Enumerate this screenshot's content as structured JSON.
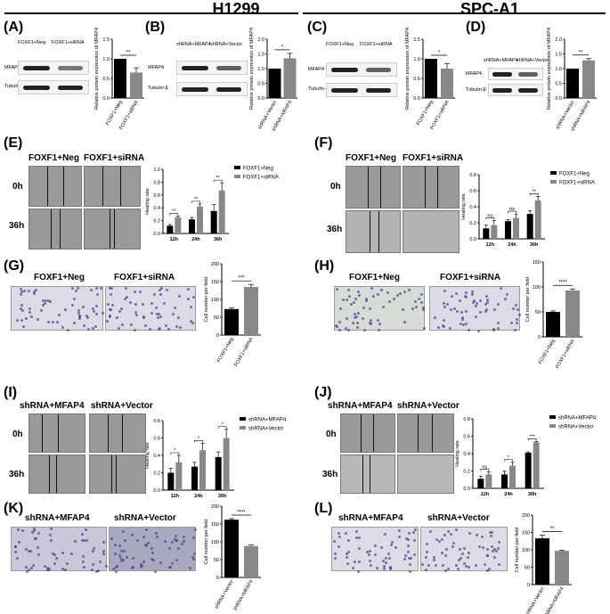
{
  "headers": {
    "left": "H1299",
    "right": "SPC-A1"
  },
  "panels": {
    "A": {
      "label": "(A)",
      "cond": [
        "FOXF1+Neg",
        "FOXF1+siRNA"
      ],
      "rows": [
        "MFAP4",
        "Tubulin-β"
      ]
    },
    "B": {
      "label": "(B)",
      "cond": [
        "shRNA+MFAP4",
        "shRNA+Vector"
      ],
      "rows": [
        "MFAP4",
        "Tubulin-β"
      ]
    },
    "C": {
      "label": "(C)",
      "cond": [
        "FOXF1+Neg",
        "FOXF1+siRNA"
      ],
      "rows": [
        "MFAP4",
        "Tubulin-β"
      ]
    },
    "D": {
      "label": "(D)",
      "cond": [
        "shRNA+MFAP4",
        "shRNA+Vector"
      ],
      "rows": [
        "MFAP4",
        "Tubulin-β"
      ]
    },
    "E": {
      "label": "(E)",
      "cond": [
        "FOXF1+Neg",
        "FOXF1+siRNA"
      ],
      "times": [
        "0h",
        "36h"
      ]
    },
    "F": {
      "label": "(F)",
      "cond": [
        "FOXF1+Neg",
        "FOXF1+siRNA"
      ],
      "times": [
        "0h",
        "36h"
      ]
    },
    "G": {
      "label": "(G)",
      "cond": [
        "FOXF1+Neg",
        "FOXF1+siRNA"
      ]
    },
    "H": {
      "label": "(H)",
      "cond": [
        "FOXF1+Neg",
        "FOXF1+siRNA"
      ]
    },
    "I": {
      "label": "(I)",
      "cond": [
        "shRNA+MFAP4",
        "shRNA+Vector"
      ],
      "times": [
        "0h",
        "36h"
      ]
    },
    "J": {
      "label": "(J)",
      "cond": [
        "shRNA+MFAP4",
        "shRNA+Vector"
      ],
      "times": [
        "0h",
        "36h"
      ]
    },
    "K": {
      "label": "(K)",
      "cond": [
        "shRNA+MFAP4",
        "shRNA+Vector"
      ]
    },
    "L": {
      "label": "(L)",
      "cond": [
        "shRNA+MFAP4",
        "shRNA+Vector"
      ]
    }
  },
  "chart_data": [
    {
      "id": "A",
      "type": "bar",
      "categories": [
        "FOXF1+Neg",
        "FOXF1+siRNA"
      ],
      "values": [
        1.0,
        0.65
      ],
      "errors": [
        0,
        0.12
      ],
      "ylabel": "Relative protein expression of MFAP4",
      "ylim": [
        0,
        1.5
      ],
      "yticks": [
        "0.0",
        "0.5",
        "1.0",
        "1.5"
      ],
      "sig": "**",
      "colors": [
        "#000000",
        "#888888"
      ]
    },
    {
      "id": "B",
      "type": "bar",
      "categories": [
        "shRNA+Vector",
        "shRNA+MFAP4"
      ],
      "values": [
        1.0,
        1.35
      ],
      "errors": [
        0,
        0.17
      ],
      "ylabel": "Relative protein expression of MFAP4",
      "ylim": [
        0,
        2.0
      ],
      "yticks": [
        "0.0",
        "0.5",
        "1.0",
        "1.5",
        "2.0"
      ],
      "sig": "*",
      "colors": [
        "#000000",
        "#888888"
      ]
    },
    {
      "id": "C",
      "type": "bar",
      "categories": [
        "FOXF1+Neg",
        "FOXF1+siRNA"
      ],
      "values": [
        1.0,
        0.75
      ],
      "errors": [
        0,
        0.13
      ],
      "ylabel": "Relative protein expression of MFAP4",
      "ylim": [
        0,
        1.5
      ],
      "yticks": [
        "0.0",
        "0.5",
        "1.0",
        "1.5"
      ],
      "sig": "*",
      "colors": [
        "#000000",
        "#888888"
      ]
    },
    {
      "id": "D",
      "type": "bar",
      "categories": [
        "shRNA+Vector",
        "shRNA+MFAP4"
      ],
      "values": [
        1.0,
        1.28
      ],
      "errors": [
        0,
        0.06
      ],
      "ylabel": "Relative protein expression of MFAP4",
      "ylim": [
        0,
        2.0
      ],
      "yticks": [
        "0.0",
        "0.5",
        "1.0",
        "1.5",
        "2.0"
      ],
      "sig": "**",
      "colors": [
        "#000000",
        "#888888"
      ]
    },
    {
      "id": "E",
      "type": "bar",
      "categories": [
        "12h",
        "24h",
        "36h"
      ],
      "series": [
        {
          "name": "FOXF1+Neg",
          "values": [
            0.12,
            0.22,
            0.35
          ],
          "errors": [
            0.02,
            0.03,
            0.1
          ]
        },
        {
          "name": "FOXF1+siRNA",
          "values": [
            0.25,
            0.42,
            0.67
          ],
          "errors": [
            0.02,
            0.04,
            0.12
          ]
        }
      ],
      "ylabel": "Healing rate",
      "ylim": [
        0,
        1.0
      ],
      "yticks": [
        "0.0",
        "0.2",
        "0.4",
        "0.6",
        "0.8",
        "1.0"
      ],
      "sig": [
        "**",
        "**",
        "**"
      ],
      "colors": [
        "#000000",
        "#888888"
      ],
      "legend": "top-right"
    },
    {
      "id": "F",
      "type": "bar",
      "categories": [
        "12h",
        "24h",
        "36h"
      ],
      "series": [
        {
          "name": "FOXF1+Neg",
          "values": [
            0.13,
            0.22,
            0.31
          ],
          "errors": [
            0.04,
            0.02,
            0.04
          ]
        },
        {
          "name": "FOXF1+siRNA",
          "values": [
            0.17,
            0.26,
            0.48
          ],
          "errors": [
            0.06,
            0.05,
            0.05
          ]
        }
      ],
      "ylabel": "Healing rate",
      "ylim": [
        0,
        0.8
      ],
      "yticks": [
        "0.0",
        "0.2",
        "0.4",
        "0.6",
        "0.8"
      ],
      "sig": [
        "ns",
        "ns",
        "**"
      ],
      "colors": [
        "#000000",
        "#888888"
      ],
      "legend": "top-right"
    },
    {
      "id": "G",
      "type": "bar",
      "categories": [
        "FOXF1+Neg",
        "FOXF1+siRNA"
      ],
      "values": [
        73,
        135
      ],
      "errors": [
        3,
        7
      ],
      "ylabel": "Cell number per field",
      "ylim": [
        0,
        200
      ],
      "yticks": [
        "0",
        "50",
        "100",
        "150",
        "200"
      ],
      "sig": "***",
      "colors": [
        "#000000",
        "#888888"
      ]
    },
    {
      "id": "H",
      "type": "bar",
      "categories": [
        "FOXF1+Neg",
        "FOXF1+siRNA"
      ],
      "values": [
        50,
        93
      ],
      "errors": [
        2,
        3
      ],
      "ylabel": "Cell number per field",
      "ylim": [
        0,
        150
      ],
      "yticks": [
        "0",
        "50",
        "100",
        "150"
      ],
      "sig": "****",
      "colors": [
        "#000000",
        "#888888"
      ]
    },
    {
      "id": "I",
      "type": "bar",
      "categories": [
        "12h",
        "24h",
        "36h"
      ],
      "series": [
        {
          "name": "shRNA+MFAP4",
          "values": [
            0.2,
            0.27,
            0.38
          ],
          "errors": [
            0.05,
            0.05,
            0.06
          ]
        },
        {
          "name": "shRNA+Vector",
          "values": [
            0.32,
            0.46,
            0.6
          ],
          "errors": [
            0.08,
            0.08,
            0.1
          ]
        }
      ],
      "ylabel": "Healing rate",
      "ylim": [
        0,
        0.8
      ],
      "yticks": [
        "0.0",
        "0.2",
        "0.4",
        "0.6",
        "0.8"
      ],
      "sig": [
        "*",
        "*",
        "*"
      ],
      "colors": [
        "#000000",
        "#888888"
      ],
      "legend": "top-right"
    },
    {
      "id": "J",
      "type": "bar",
      "categories": [
        "12h",
        "24h",
        "36h"
      ],
      "series": [
        {
          "name": "shRNA+MFAP4",
          "values": [
            0.11,
            0.16,
            0.41
          ],
          "errors": [
            0.03,
            0.04,
            0.01
          ]
        },
        {
          "name": "shRNA+Vector",
          "values": [
            0.16,
            0.26,
            0.53
          ],
          "errors": [
            0.03,
            0.04,
            0.01
          ]
        }
      ],
      "ylabel": "Healing rate",
      "ylim": [
        0,
        0.8
      ],
      "yticks": [
        "0.0",
        "0.2",
        "0.4",
        "0.6",
        "0.8"
      ],
      "sig": [
        "ns",
        "*",
        "***"
      ],
      "colors": [
        "#000000",
        "#888888"
      ],
      "legend": "top-right"
    },
    {
      "id": "K",
      "type": "bar",
      "categories": [
        "shRNA+Vector",
        "shRNA+MFAP4"
      ],
      "values": [
        162,
        88
      ],
      "errors": [
        3,
        3
      ],
      "ylabel": "Cell number per field",
      "ylim": [
        0,
        200
      ],
      "yticks": [
        "0",
        "50",
        "100",
        "150",
        "200"
      ],
      "sig": "****",
      "colors": [
        "#000000",
        "#888888"
      ]
    },
    {
      "id": "L",
      "type": "bar",
      "categories": [
        "shRNA+Vector",
        "shRNA+MFAP4"
      ],
      "values": [
        133,
        97
      ],
      "errors": [
        9,
        2
      ],
      "ylabel": "Cell number per field",
      "ylim": [
        0,
        200
      ],
      "yticks": [
        "0",
        "50",
        "100",
        "150",
        "200"
      ],
      "sig": "**",
      "colors": [
        "#000000",
        "#888888"
      ]
    }
  ]
}
